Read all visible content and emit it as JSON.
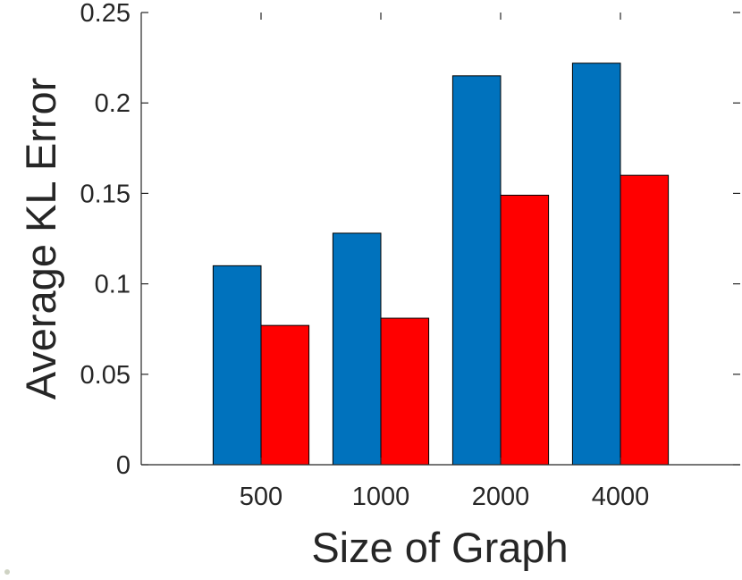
{
  "chart_data": {
    "type": "bar",
    "title": "",
    "xlabel": "Size of Graph",
    "ylabel": "Average KL Error",
    "categories": [
      "500",
      "1000",
      "2000",
      "4000"
    ],
    "series": [
      {
        "color": "#0072BD",
        "values": [
          0.11,
          0.128,
          0.215,
          0.222
        ]
      },
      {
        "color": "#FF0000",
        "values": [
          0.077,
          0.081,
          0.149,
          0.16
        ]
      }
    ],
    "ylim": [
      0,
      0.25
    ],
    "yticks": [
      0,
      0.05,
      0.1,
      0.15,
      0.2,
      0.25
    ],
    "ytick_labels": [
      "0",
      "0.05",
      "0.1",
      "0.15",
      "0.2",
      "0.25"
    ],
    "grid": false,
    "legend": "none"
  }
}
